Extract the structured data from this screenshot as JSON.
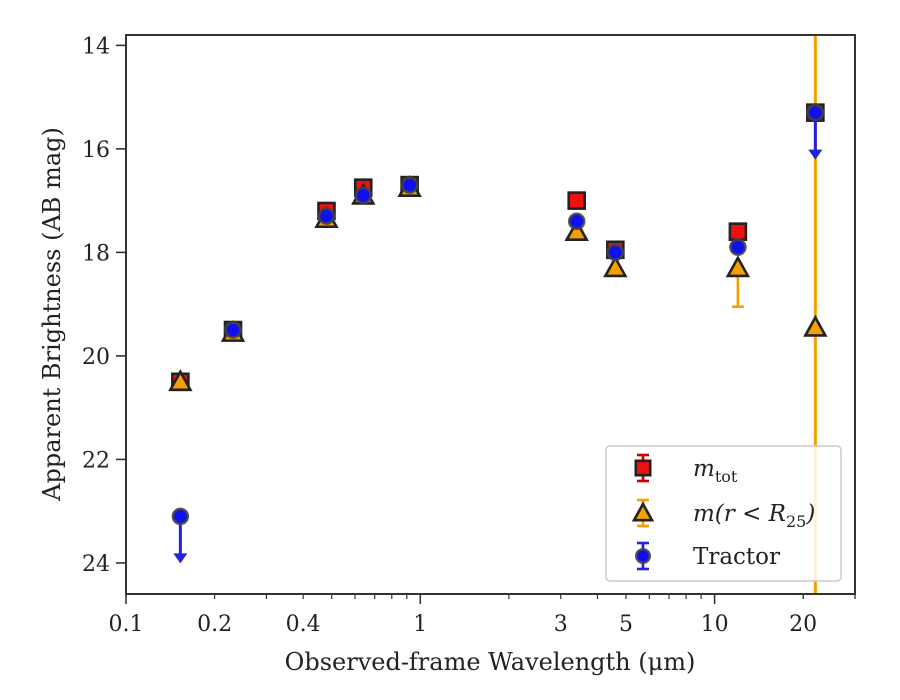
{
  "chart_data": {
    "type": "scatter",
    "title": "",
    "xlabel": "Observed-frame Wavelength (μm)",
    "ylabel": "Apparent Brightness (AB mag)",
    "xscale": "log",
    "xlim": [
      0.1,
      30
    ],
    "ylim": [
      24.6,
      13.8
    ],
    "y_inverted": true,
    "grid": false,
    "legend_position": "bottom-right",
    "x_ticks": [
      {
        "value": 0.1,
        "label": "0.1"
      },
      {
        "value": 0.2,
        "label": "0.2"
      },
      {
        "value": 0.4,
        "label": "0.4"
      },
      {
        "value": 1,
        "label": "1"
      },
      {
        "value": 3,
        "label": "3"
      },
      {
        "value": 5,
        "label": "5"
      },
      {
        "value": 10,
        "label": "10"
      },
      {
        "value": 20,
        "label": "20"
      }
    ],
    "y_ticks": [
      {
        "value": 14,
        "label": "14"
      },
      {
        "value": 16,
        "label": "16"
      },
      {
        "value": 18,
        "label": "18"
      },
      {
        "value": 20,
        "label": "20"
      },
      {
        "value": 22,
        "label": "22"
      },
      {
        "value": 24,
        "label": "24"
      }
    ],
    "series": [
      {
        "name": "m_tot",
        "legend_main": "m",
        "legend_sub": "tot",
        "marker": "square",
        "color": "#ee1111",
        "errcolor": "#cc0000",
        "points": [
          {
            "x": 0.153,
            "y": 20.5
          },
          {
            "x": 0.231,
            "y": 19.5
          },
          {
            "x": 0.48,
            "y": 17.2
          },
          {
            "x": 0.64,
            "y": 16.75
          },
          {
            "x": 0.92,
            "y": 16.7
          },
          {
            "x": 3.4,
            "y": 17.0
          },
          {
            "x": 4.6,
            "y": 17.95
          },
          {
            "x": 12.0,
            "y": 17.6
          },
          {
            "x": 22.0,
            "y": 15.3
          }
        ]
      },
      {
        "name": "m(r<R25)",
        "legend_main": "m(r < R",
        "legend_sub": "25",
        "legend_tail": ")",
        "marker": "triangle",
        "color": "#f5a000",
        "errcolor": "#f5a000",
        "points": [
          {
            "x": 0.153,
            "y": 20.5
          },
          {
            "x": 0.231,
            "y": 19.55
          },
          {
            "x": 0.48,
            "y": 17.35
          },
          {
            "x": 0.64,
            "y": 16.9
          },
          {
            "x": 0.92,
            "y": 16.75
          },
          {
            "x": 3.4,
            "y": 17.6
          },
          {
            "x": 4.6,
            "y": 18.3
          },
          {
            "x": 12.0,
            "y": 18.3,
            "err_lo": 0.75
          },
          {
            "x": 22.0,
            "y": 19.45,
            "vline": true
          }
        ]
      },
      {
        "name": "Tractor",
        "legend_main": "Tractor",
        "marker": "circle",
        "color": "#1010ee",
        "errcolor": "#2222dd",
        "points": [
          {
            "x": 0.153,
            "y": 23.1,
            "upper_limit": true
          },
          {
            "x": 0.231,
            "y": 19.5
          },
          {
            "x": 0.48,
            "y": 17.3
          },
          {
            "x": 0.64,
            "y": 16.9
          },
          {
            "x": 0.92,
            "y": 16.7
          },
          {
            "x": 3.4,
            "y": 17.4
          },
          {
            "x": 4.6,
            "y": 18.0
          },
          {
            "x": 12.0,
            "y": 17.9
          },
          {
            "x": 22.0,
            "y": 15.3,
            "upper_limit": true
          }
        ]
      }
    ]
  }
}
